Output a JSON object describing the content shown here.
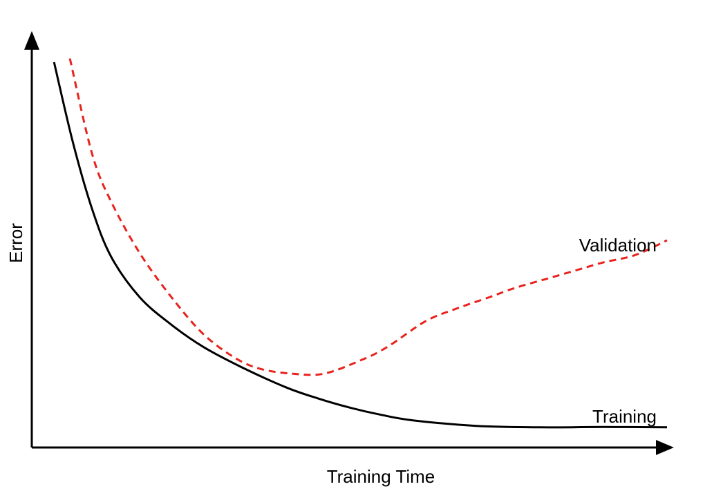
{
  "chart_data": {
    "type": "line",
    "title": "",
    "xlabel": "Training Time",
    "ylabel": "Error",
    "xlim": [
      0,
      100
    ],
    "ylim": [
      0,
      100
    ],
    "grid": false,
    "legend": "inline labels",
    "series": [
      {
        "name": "Training",
        "color": "#000000",
        "style": "solid",
        "x": [
          3.5,
          6.5,
          9.5,
          12.5,
          17,
          22,
          27,
          33,
          40,
          45,
          50,
          55,
          60,
          70,
          80,
          90,
          100
        ],
        "y": [
          100,
          78,
          60,
          47,
          36,
          28.5,
          22.5,
          17,
          11.5,
          8.5,
          6,
          4,
          2.5,
          1,
          0.6,
          0.7,
          0.6
        ]
      },
      {
        "name": "Validation",
        "color": "#e8221c",
        "style": "dashed",
        "x": [
          6,
          9.5,
          12.5,
          17,
          22,
          27,
          32,
          36,
          41,
          46,
          52,
          56,
          62,
          67,
          72,
          76,
          81,
          86,
          90,
          95,
          100
        ],
        "y": [
          101,
          75,
          62,
          48,
          36,
          26,
          19.5,
          16.5,
          15.2,
          15.2,
          19,
          22.5,
          29.5,
          33,
          36,
          38.5,
          41,
          43.5,
          45.5,
          47.5,
          51.5
        ]
      }
    ]
  }
}
